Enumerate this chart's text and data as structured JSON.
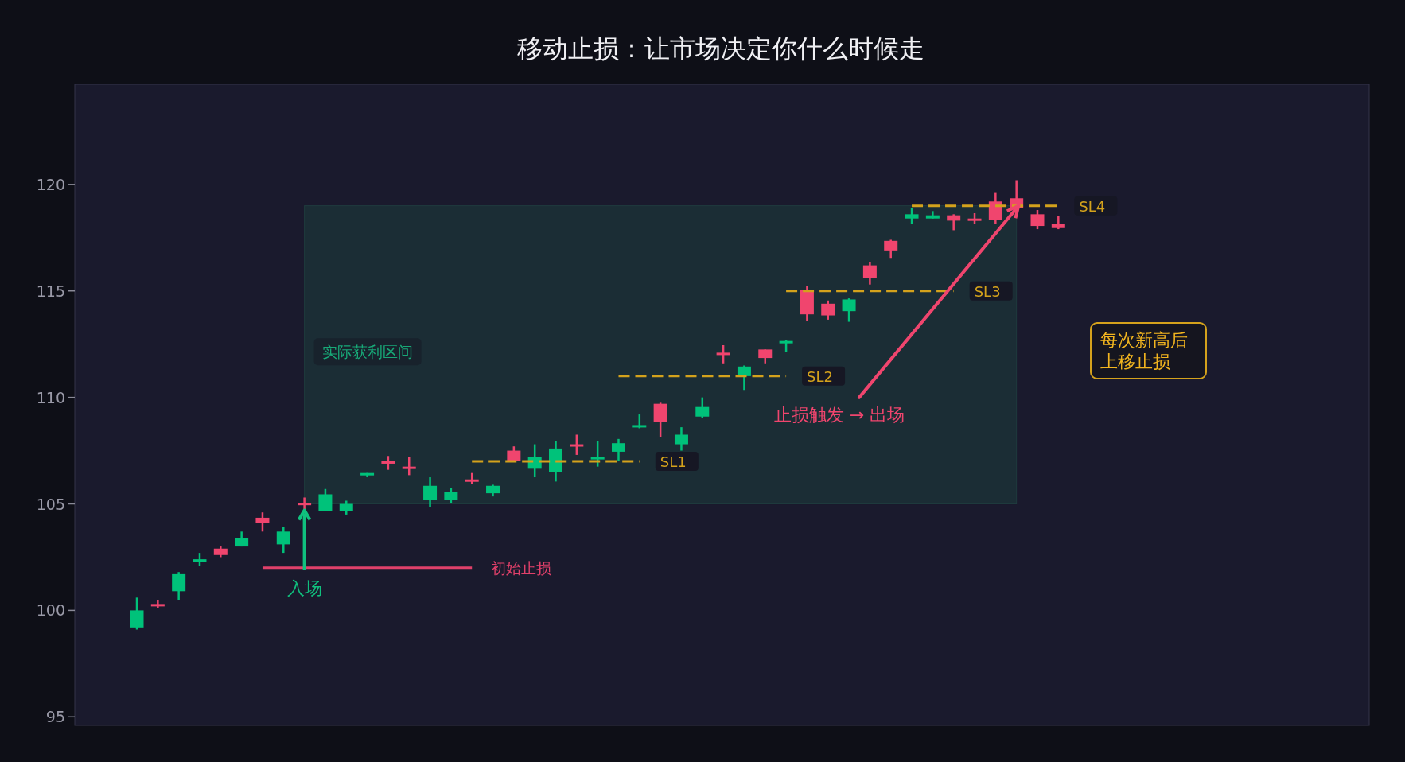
{
  "chart_data": {
    "type": "candlestick",
    "title": "移动止损：让市场决定你什么时候走",
    "categories": [
      null,
      null,
      null,
      null,
      null,
      null,
      null,
      null,
      null,
      null,
      null,
      null,
      null,
      null,
      null,
      null,
      null,
      null,
      null,
      null,
      null,
      null,
      null,
      null,
      null,
      null,
      null,
      null,
      null,
      null,
      null,
      null,
      null,
      null,
      null,
      null,
      null,
      null,
      null,
      null,
      null,
      null,
      null,
      null,
      null
    ],
    "ohlc": [
      [
        99.2,
        100.6,
        99.1,
        100.0
      ],
      [
        100.3,
        100.5,
        100.1,
        100.2
      ],
      [
        100.9,
        101.8,
        100.5,
        101.7
      ],
      [
        102.35,
        102.7,
        102.1,
        102.4
      ],
      [
        102.9,
        103.0,
        102.5,
        102.6
      ],
      [
        103.0,
        103.7,
        103.0,
        103.4
      ],
      [
        104.35,
        104.6,
        103.7,
        104.1
      ],
      [
        103.1,
        103.9,
        102.7,
        103.7
      ],
      [
        105.05,
        105.3,
        104.7,
        105.0
      ],
      [
        104.65,
        105.7,
        104.65,
        105.45
      ],
      [
        104.65,
        105.15,
        104.5,
        105.0
      ],
      [
        106.4,
        106.45,
        106.25,
        106.45
      ],
      [
        107.0,
        107.25,
        106.6,
        106.95
      ],
      [
        106.75,
        107.2,
        106.35,
        106.65
      ],
      [
        105.2,
        106.25,
        104.85,
        105.85
      ],
      [
        105.2,
        105.75,
        105.05,
        105.55
      ],
      [
        106.15,
        106.45,
        105.95,
        106.1
      ],
      [
        105.5,
        105.9,
        105.35,
        105.85
      ],
      [
        107.5,
        107.7,
        107.0,
        107.0
      ],
      [
        106.65,
        107.8,
        106.25,
        107.2
      ],
      [
        106.5,
        107.95,
        106.05,
        107.6
      ],
      [
        107.8,
        108.25,
        107.3,
        107.75
      ],
      [
        107.15,
        107.95,
        106.75,
        107.2
      ],
      [
        107.45,
        108.05,
        107.0,
        107.85
      ],
      [
        108.65,
        109.2,
        108.55,
        108.7
      ],
      [
        109.7,
        109.75,
        108.15,
        108.85
      ],
      [
        107.8,
        108.6,
        107.5,
        108.25
      ],
      [
        109.1,
        110.0,
        109.05,
        109.55
      ],
      [
        112.1,
        112.45,
        111.6,
        112.05
      ],
      [
        111.0,
        111.5,
        110.35,
        111.45
      ],
      [
        112.25,
        112.25,
        111.6,
        111.85
      ],
      [
        112.6,
        112.7,
        112.15,
        112.65
      ],
      [
        115.05,
        115.25,
        113.6,
        113.9
      ],
      [
        114.4,
        114.55,
        113.65,
        113.85
      ],
      [
        114.05,
        114.65,
        113.55,
        114.6
      ],
      [
        116.2,
        116.35,
        115.3,
        115.6
      ],
      [
        117.35,
        117.4,
        116.55,
        116.9
      ],
      [
        118.4,
        118.9,
        118.15,
        118.6
      ],
      [
        118.4,
        118.75,
        118.4,
        118.55
      ],
      [
        118.55,
        118.6,
        117.85,
        118.3
      ],
      [
        118.4,
        118.65,
        118.15,
        118.35
      ],
      [
        119.2,
        119.6,
        118.15,
        118.35
      ],
      [
        119.35,
        120.2,
        118.5,
        118.9
      ],
      [
        118.6,
        118.8,
        117.9,
        118.05
      ],
      [
        118.15,
        118.5,
        117.9,
        117.95
      ]
    ],
    "colors": [
      "#00c27a",
      "#f0456e",
      "#00c27a",
      "#00c27a",
      "#f0456e",
      "#00c27a",
      "#f0456e",
      "#00c27a",
      "#f0456e",
      "#00c27a",
      "#00c27a",
      "#00c27a",
      "#f0456e",
      "#f0456e",
      "#00c27a",
      "#00c27a",
      "#f0456e",
      "#00c27a",
      "#f0456e",
      "#00c27a",
      "#00c27a",
      "#f0456e",
      "#00c27a",
      "#00c27a",
      "#00c27a",
      "#f0456e",
      "#00c27a",
      "#00c27a",
      "#f0456e",
      "#00c27a",
      "#f0456e",
      "#00c27a",
      "#f0456e",
      "#f0456e",
      "#00c27a",
      "#f0456e",
      "#f0456e",
      "#00c27a",
      "#00c27a",
      "#f0456e",
      "#f0456e",
      "#f0456e",
      "#f0456e",
      "#f0456e",
      "#f0456e"
    ],
    "series": [
      {
        "type": "line",
        "name": "初始止损",
        "color": "#e0406a",
        "line_style": "solid",
        "values": [
          null,
          null,
          null,
          null,
          null,
          null,
          102,
          102,
          102,
          102,
          102,
          102,
          102,
          102,
          102,
          102,
          102,
          null,
          null,
          null,
          null,
          null,
          null,
          null,
          null,
          null,
          null,
          null,
          null,
          null,
          null,
          null,
          null,
          null,
          null,
          null,
          null,
          null,
          null,
          null,
          null,
          null,
          null,
          null,
          null
        ]
      },
      {
        "type": "line",
        "name": "SL1",
        "color": "#d4a21c",
        "line_style": "dashed",
        "values": [
          null,
          null,
          null,
          null,
          null,
          null,
          null,
          null,
          null,
          null,
          null,
          null,
          null,
          null,
          null,
          null,
          107,
          107,
          107,
          107,
          107,
          107,
          107,
          107,
          107,
          null,
          null,
          null,
          null,
          null,
          null,
          null,
          null,
          null,
          null,
          null,
          null,
          null,
          null,
          null,
          null,
          null,
          null,
          null,
          null
        ]
      },
      {
        "type": "line",
        "name": "SL2",
        "color": "#d4a21c",
        "line_style": "dashed",
        "values": [
          null,
          null,
          null,
          null,
          null,
          null,
          null,
          null,
          null,
          null,
          null,
          null,
          null,
          null,
          null,
          null,
          null,
          null,
          null,
          null,
          null,
          null,
          null,
          111,
          111,
          111,
          111,
          111,
          111,
          111,
          111,
          111,
          null,
          null,
          null,
          null,
          null,
          null,
          null,
          null,
          null,
          null,
          null,
          null,
          null
        ]
      },
      {
        "type": "line",
        "name": "SL3",
        "color": "#d4a21c",
        "line_style": "dashed",
        "values": [
          null,
          null,
          null,
          null,
          null,
          null,
          null,
          null,
          null,
          null,
          null,
          null,
          null,
          null,
          null,
          null,
          null,
          null,
          null,
          null,
          null,
          null,
          null,
          null,
          null,
          null,
          null,
          null,
          null,
          null,
          null,
          115,
          115,
          115,
          115,
          115,
          115,
          115,
          115,
          115,
          null,
          null,
          null,
          null,
          null
        ]
      },
      {
        "type": "line",
        "name": "SL4",
        "color": "#d4a21c",
        "line_style": "dashed",
        "values": [
          null,
          null,
          null,
          null,
          null,
          null,
          null,
          null,
          null,
          null,
          null,
          null,
          null,
          null,
          null,
          null,
          null,
          null,
          null,
          null,
          null,
          null,
          null,
          null,
          null,
          null,
          null,
          null,
          null,
          null,
          null,
          null,
          null,
          null,
          null,
          null,
          null,
          119,
          119,
          119,
          119,
          119,
          119,
          119,
          119
        ]
      }
    ],
    "bands": [
      {
        "axis": "y",
        "from": 105,
        "to": 119,
        "label": "实际获利区间",
        "color": "#1b2d35"
      }
    ],
    "annotations": [
      "入场",
      "止损触发 → 出场",
      "每次新高后",
      "上移止损"
    ],
    "ylim": [
      94.6,
      124.7
    ],
    "yticks": [
      95,
      100,
      105,
      110,
      115,
      120
    ],
    "tick_labels": "y"
  }
}
